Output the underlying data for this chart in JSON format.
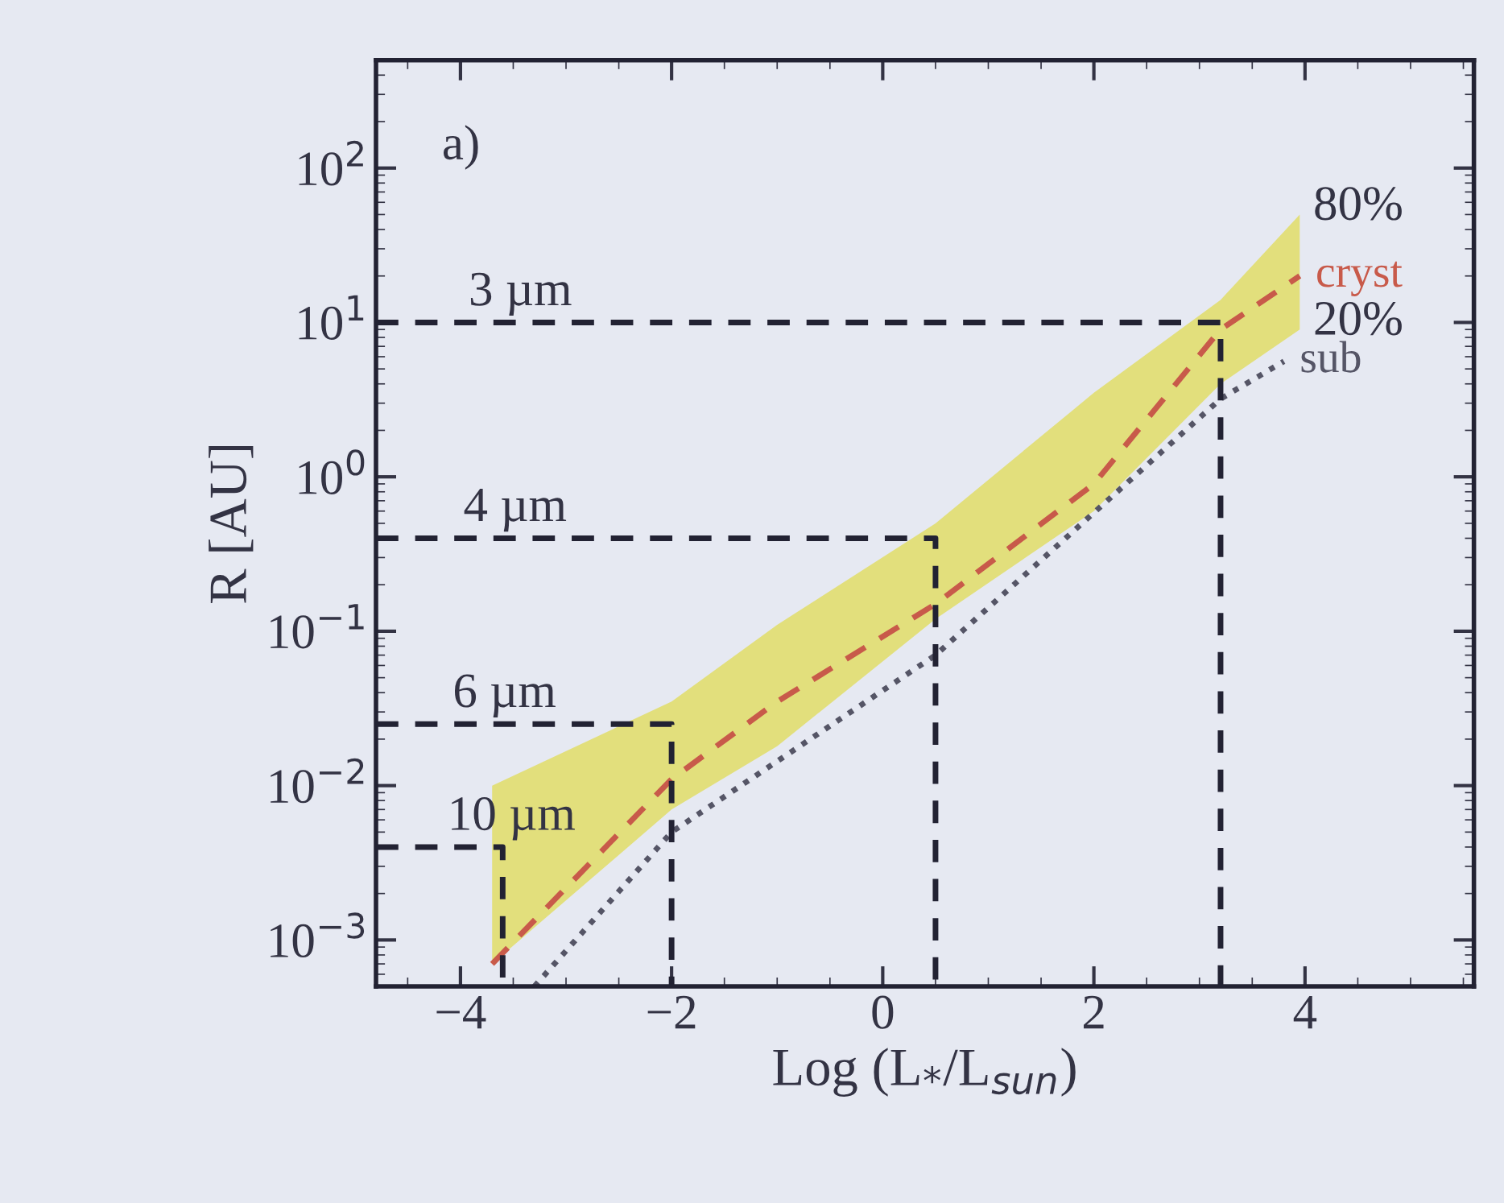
{
  "chart_data": {
    "type": "line",
    "xlabel": "Log (L$_{*}$/L$_{sun}$)",
    "ylabel": "R [AU]",
    "log": "y",
    "xlim": [
      -4.8,
      5.6
    ],
    "xticks": [
      {
        "value": -4,
        "label": "−4"
      },
      {
        "value": -2,
        "label": "−2"
      },
      0,
      2,
      4
    ],
    "ylim": [
      0.0005,
      500
    ],
    "yticks": [
      {
        "value": 0.001,
        "label": "10$^{−3}$"
      },
      {
        "value": 0.01,
        "label": "10$^{−2}$"
      },
      {
        "value": 0.1,
        "label": "10$^{−1}$"
      },
      {
        "value": 1,
        "label": "10$^{0}$"
      },
      {
        "value": 10,
        "label": "10$^{1}$"
      },
      {
        "value": 100,
        "label": "10$^{2}$"
      }
    ],
    "grid": false,
    "legend": false,
    "marker": "none",
    "series": [
      {
        "name": "cryst",
        "color": "#c85a4a",
        "line_style": "dashed",
        "x": [
          -3.7,
          -2,
          -1,
          0.5,
          2,
          3.2,
          3.95
        ],
        "values": [
          0.0007,
          0.011,
          0.035,
          0.15,
          0.9,
          9,
          20
        ],
        "lower": [
          0.0007,
          0.007,
          0.018,
          0.12,
          0.6,
          4,
          9
        ],
        "upper": [
          0.01,
          0.035,
          0.11,
          0.5,
          3.5,
          14,
          50
        ]
      },
      {
        "name": "sub",
        "color": "#555566",
        "line_style": "dotted",
        "x": [
          -3.3,
          -2,
          0.5,
          3.2,
          3.8
        ],
        "values": [
          0.0005,
          0.005,
          0.07,
          3.2,
          5.6
        ]
      },
      {
        "color": "#222233",
        "line_style": "dashed",
        "x": [
          -4.8,
          3.2,
          3.2
        ],
        "values": [
          10,
          10,
          0.0005
        ]
      },
      {
        "color": "#222233",
        "line_style": "dashed",
        "x": [
          -4.8,
          0.5,
          0.5
        ],
        "values": [
          0.4,
          0.4,
          0.0005
        ]
      },
      {
        "color": "#222233",
        "line_style": "dashed",
        "x": [
          -4.8,
          -2,
          -2
        ],
        "values": [
          0.025,
          0.025,
          0.0005
        ]
      },
      {
        "color": "#222233",
        "line_style": "dashed",
        "x": [
          -4.8,
          -3.6,
          -3.6
        ],
        "values": [
          0.004,
          0.004,
          0.0005
        ]
      }
    ],
    "annotations": [
      "a)",
      {
        "text": "3 µm",
        "x": -4.05,
        "y": 10
      },
      {
        "text": "4 µm",
        "x": -4.1,
        "y": 0.4
      },
      {
        "text": "6 µm",
        "x": -4.2,
        "y": 0.025
      },
      {
        "text": "10 µm",
        "x": -4.25,
        "y": 0.004
      },
      {
        "text": "80%",
        "x": 3.95,
        "y": 50
      },
      {
        "text": "20%",
        "x": 3.95,
        "y": 9
      }
    ]
  }
}
